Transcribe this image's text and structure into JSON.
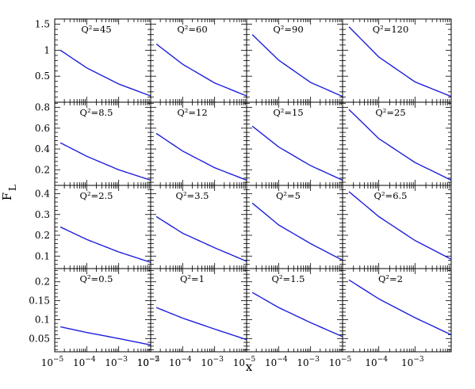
{
  "figure": {
    "xlabel": "x",
    "ylabel_main": "F",
    "ylabel_sub": "L",
    "line_color": "#1f1fdc",
    "frame_color": "#000000"
  },
  "chart_data": {
    "type": "line",
    "xlabel": "x",
    "ylabel": "F_L",
    "xscale": "log",
    "xlim": [
      1e-05,
      0.01
    ],
    "x_tick_labels": [
      "10^-5",
      "10^-4",
      "10^-3",
      "10^-2"
    ],
    "x_tick_label_parts": [
      {
        "base": "10",
        "exp": "−5"
      },
      {
        "base": "10",
        "exp": "−4"
      },
      {
        "base": "10",
        "exp": "−3"
      },
      {
        "base": "10",
        "exp": "−2"
      }
    ],
    "rows": [
      {
        "ylim": [
          0,
          1.6
        ],
        "yticks": [
          0.5,
          1,
          1.5
        ],
        "ytick_labels": [
          "0.5",
          "1",
          "1.5"
        ],
        "panels": [
          {
            "label": "Q²=45",
            "x": [
              1.5e-05,
              0.0001,
              0.001,
              0.01
            ],
            "y": [
              1.0,
              0.66,
              0.35,
              0.12
            ]
          },
          {
            "label": "Q²=60",
            "x": [
              1.5e-05,
              0.0001,
              0.001,
              0.01
            ],
            "y": [
              1.12,
              0.73,
              0.37,
              0.12
            ]
          },
          {
            "label": "Q²=90",
            "x": [
              1.5e-05,
              0.0001,
              0.001,
              0.01
            ],
            "y": [
              1.3,
              0.81,
              0.38,
              0.11
            ]
          },
          {
            "label": "Q²=120",
            "x": [
              1.5e-05,
              0.0001,
              0.001,
              0.01
            ],
            "y": [
              1.45,
              0.87,
              0.39,
              0.11
            ]
          }
        ]
      },
      {
        "ylim": [
          0.05,
          0.85
        ],
        "yticks": [
          0.2,
          0.4,
          0.6,
          0.8
        ],
        "ytick_labels": [
          "0.2",
          "0.4",
          "0.6",
          "0.8"
        ],
        "panels": [
          {
            "label": "Q²=8.5",
            "x": [
              1.5e-05,
              0.0001,
              0.001,
              0.01
            ],
            "y": [
              0.46,
              0.33,
              0.2,
              0.1
            ]
          },
          {
            "label": "Q²=12",
            "x": [
              1.5e-05,
              0.0001,
              0.001,
              0.01
            ],
            "y": [
              0.55,
              0.38,
              0.22,
              0.1
            ]
          },
          {
            "label": "Q²=15",
            "x": [
              1.5e-05,
              0.0001,
              0.001,
              0.01
            ],
            "y": [
              0.62,
              0.42,
              0.24,
              0.1
            ]
          },
          {
            "label": "Q²=25",
            "x": [
              1.5e-05,
              0.0001,
              0.001,
              0.01
            ],
            "y": [
              0.78,
              0.5,
              0.27,
              0.1
            ]
          }
        ]
      },
      {
        "ylim": [
          0.04,
          0.44
        ],
        "yticks": [
          0.1,
          0.2,
          0.3,
          0.4
        ],
        "ytick_labels": [
          "0.1",
          "0.2",
          "0.3",
          "0.4"
        ],
        "panels": [
          {
            "label": "Q²=2.5",
            "x": [
              1.5e-05,
              0.0001,
              0.001,
              0.01
            ],
            "y": [
              0.24,
              0.18,
              0.12,
              0.07
            ]
          },
          {
            "label": "Q²=3.5",
            "x": [
              1.5e-05,
              0.0001,
              0.001,
              0.01
            ],
            "y": [
              0.29,
              0.21,
              0.14,
              0.075
            ]
          },
          {
            "label": "Q²=5",
            "x": [
              1.5e-05,
              0.0001,
              0.001,
              0.01
            ],
            "y": [
              0.355,
              0.25,
              0.16,
              0.08
            ]
          },
          {
            "label": "Q²=6.5",
            "x": [
              1.5e-05,
              0.0001,
              0.001,
              0.01
            ],
            "y": [
              0.41,
              0.29,
              0.175,
              0.085
            ]
          }
        ]
      },
      {
        "ylim": [
          0.015,
          0.235
        ],
        "yticks": [
          0.05,
          0.1,
          0.15,
          0.2
        ],
        "ytick_labels": [
          "0.05",
          "0.1",
          "0.15",
          "0.2"
        ],
        "panels": [
          {
            "label": "Q²=0.5",
            "x": [
              1.5e-05,
              0.0001,
              0.001,
              0.01
            ],
            "y": [
              0.081,
              0.066,
              0.05,
              0.033
            ]
          },
          {
            "label": "Q²=1",
            "x": [
              1.5e-05,
              0.0001,
              0.001,
              0.01
            ],
            "y": [
              0.132,
              0.104,
              0.075,
              0.047
            ]
          },
          {
            "label": "Q²=1.5",
            "x": [
              1.5e-05,
              0.0001,
              0.001,
              0.01
            ],
            "y": [
              0.172,
              0.132,
              0.092,
              0.055
            ]
          },
          {
            "label": "Q²=2",
            "x": [
              1.5e-05,
              0.0001,
              0.001,
              0.01
            ],
            "y": [
              0.205,
              0.155,
              0.105,
              0.06
            ]
          }
        ]
      }
    ]
  }
}
